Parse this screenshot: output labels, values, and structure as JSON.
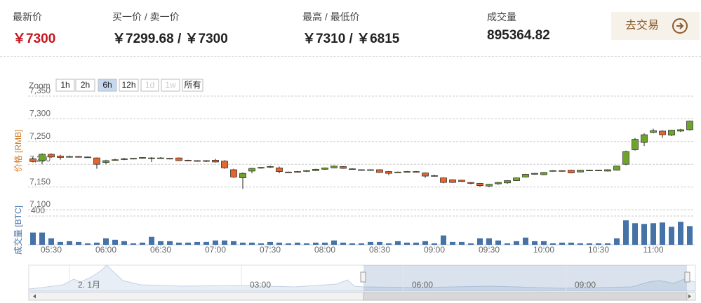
{
  "header": {
    "items": [
      {
        "label": "最新价",
        "value": "￥7300"
      },
      {
        "label": "买一价 / 卖一价",
        "value": "￥7299.68 / ￥7300"
      },
      {
        "label": "最高 / 最低价",
        "value": "￥7310 / ￥6815"
      },
      {
        "label": "成交量",
        "value": "895364.82"
      }
    ],
    "button": "去交易"
  },
  "zoom": {
    "label": "Zoom",
    "buttons": [
      "1h",
      "2h",
      "6h",
      "12h",
      "1d",
      "1w",
      "所有"
    ],
    "selected": 2,
    "disabled": [
      4,
      5
    ]
  },
  "chart_data": {
    "type": "candlestick",
    "x": [
      "05:20",
      "05:25",
      "05:30",
      "05:35",
      "05:40",
      "05:45",
      "05:50",
      "05:55",
      "06:00",
      "06:05",
      "06:10",
      "06:15",
      "06:20",
      "06:25",
      "06:30",
      "06:35",
      "06:40",
      "06:45",
      "06:50",
      "06:55",
      "07:00",
      "07:05",
      "07:10",
      "07:15",
      "07:20",
      "07:25",
      "07:30",
      "07:35",
      "07:40",
      "07:45",
      "07:50",
      "07:55",
      "08:00",
      "08:05",
      "08:10",
      "08:15",
      "08:20",
      "08:25",
      "08:30",
      "08:35",
      "08:40",
      "08:45",
      "08:50",
      "08:55",
      "09:00",
      "09:05",
      "09:10",
      "09:15",
      "09:20",
      "09:25",
      "09:30",
      "09:35",
      "09:40",
      "09:45",
      "09:50",
      "09:55",
      "10:00",
      "10:05",
      "10:10",
      "10:15",
      "10:20",
      "10:25",
      "10:30",
      "10:35",
      "10:40",
      "10:45",
      "10:50",
      "10:55",
      "11:00",
      "11:05",
      "11:10",
      "11:15",
      "11:20"
    ],
    "open": [
      7212,
      7208,
      7222,
      7218,
      7217,
      7217,
      7216,
      7214,
      7204,
      7210,
      7211,
      7212,
      7213,
      7214,
      7214,
      7213,
      7214,
      7209,
      7208,
      7208,
      7209,
      7207,
      7188,
      7170,
      7185,
      7192,
      7194,
      7192,
      7183,
      7184,
      7185,
      7186,
      7189,
      7192,
      7195,
      7190,
      7188,
      7187,
      7188,
      7184,
      7183,
      7183,
      7184,
      7181,
      7175,
      7170,
      7166,
      7165,
      7160,
      7158,
      7152,
      7157,
      7159,
      7164,
      7172,
      7178,
      7177,
      7185,
      7186,
      7187,
      7183,
      7186,
      7187,
      7185,
      7187,
      7200,
      7232,
      7248,
      7270,
      7273,
      7264,
      7273,
      7276
    ],
    "high": [
      7215,
      7224,
      7224,
      7221,
      7219,
      7218,
      7217,
      7215,
      7210,
      7212,
      7214,
      7214,
      7216,
      7216,
      7216,
      7214,
      7215,
      7210,
      7209,
      7209,
      7212,
      7209,
      7190,
      7182,
      7192,
      7194,
      7197,
      7195,
      7184,
      7185,
      7187,
      7190,
      7193,
      7197,
      7196,
      7191,
      7189,
      7189,
      7189,
      7185,
      7184,
      7185,
      7185,
      7182,
      7177,
      7171,
      7167,
      7166,
      7161,
      7159,
      7157,
      7161,
      7165,
      7171,
      7179,
      7181,
      7183,
      7187,
      7187,
      7188,
      7188,
      7188,
      7188,
      7189,
      7197,
      7230,
      7258,
      7268,
      7278,
      7275,
      7276,
      7278,
      7296
    ],
    "low": [
      7204,
      7200,
      7214,
      7210,
      7215,
      7215,
      7214,
      7190,
      7200,
      7208,
      7209,
      7211,
      7212,
      7205,
      7212,
      7211,
      7207,
      7207,
      7206,
      7205,
      7204,
      7190,
      7170,
      7146,
      7180,
      7190,
      7192,
      7180,
      7181,
      7182,
      7183,
      7185,
      7188,
      7191,
      7190,
      7188,
      7187,
      7186,
      7181,
      7176,
      7182,
      7182,
      7182,
      7170,
      7174,
      7158,
      7159,
      7161,
      7156,
      7150,
      7150,
      7155,
      7157,
      7163,
      7171,
      7177,
      7176,
      7184,
      7184,
      7180,
      7182,
      7185,
      7186,
      7184,
      7186,
      7198,
      7230,
      7240,
      7268,
      7258,
      7262,
      7271,
      7274
    ],
    "close": [
      7206,
      7222,
      7216,
      7215,
      7217,
      7216,
      7215,
      7200,
      7208,
      7210,
      7212,
      7213,
      7215,
      7214,
      7214,
      7212,
      7208,
      7208,
      7207,
      7207,
      7205,
      7192,
      7172,
      7180,
      7191,
      7193,
      7195,
      7184,
      7182,
      7183,
      7186,
      7189,
      7192,
      7196,
      7191,
      7189,
      7188,
      7188,
      7182,
      7180,
      7183,
      7184,
      7183,
      7174,
      7175,
      7160,
      7160,
      7162,
      7158,
      7153,
      7156,
      7160,
      7164,
      7170,
      7178,
      7180,
      7182,
      7186,
      7185,
      7181,
      7187,
      7187,
      7187,
      7188,
      7196,
      7228,
      7255,
      7265,
      7274,
      7265,
      7275,
      7276,
      7295
    ],
    "volume": [
      170,
      170,
      90,
      40,
      50,
      40,
      20,
      30,
      90,
      70,
      50,
      20,
      30,
      110,
      50,
      50,
      30,
      30,
      40,
      40,
      60,
      60,
      50,
      30,
      30,
      20,
      40,
      30,
      20,
      30,
      20,
      30,
      30,
      60,
      30,
      20,
      20,
      40,
      40,
      20,
      50,
      30,
      30,
      50,
      20,
      130,
      40,
      40,
      20,
      90,
      90,
      60,
      20,
      50,
      100,
      50,
      50,
      20,
      30,
      30,
      20,
      20,
      20,
      20,
      90,
      340,
      300,
      290,
      300,
      310,
      250,
      320,
      260
    ],
    "up_color": "#6ea42c",
    "down_color": "#e5652c",
    "volume_color": "#4572a7",
    "ylabel": "价格 [RMB]",
    "y2label": "成交量 [BTC]",
    "ylim": [
      7100,
      7350
    ],
    "yticks": [
      {
        "value": 7100,
        "label": "7,100"
      },
      {
        "value": 7150,
        "label": "7,150"
      },
      {
        "value": 7200,
        "label": "7,200"
      },
      {
        "value": 7250,
        "label": "7,250"
      },
      {
        "value": 7300,
        "label": "7,300"
      },
      {
        "value": 7350,
        "label": "7,350"
      }
    ],
    "y2lim": [
      0,
      400
    ],
    "y2ticks": [
      400
    ],
    "xticks": [
      "05:30",
      "06:00",
      "06:30",
      "07:00",
      "07:30",
      "08:00",
      "08:30",
      "09:00",
      "09:30",
      "10:00",
      "10:30",
      "11:00"
    ],
    "grid": true
  },
  "navigator": {
    "labels": [
      "2. 1月",
      "03:00",
      "06:00",
      "09:00"
    ]
  }
}
